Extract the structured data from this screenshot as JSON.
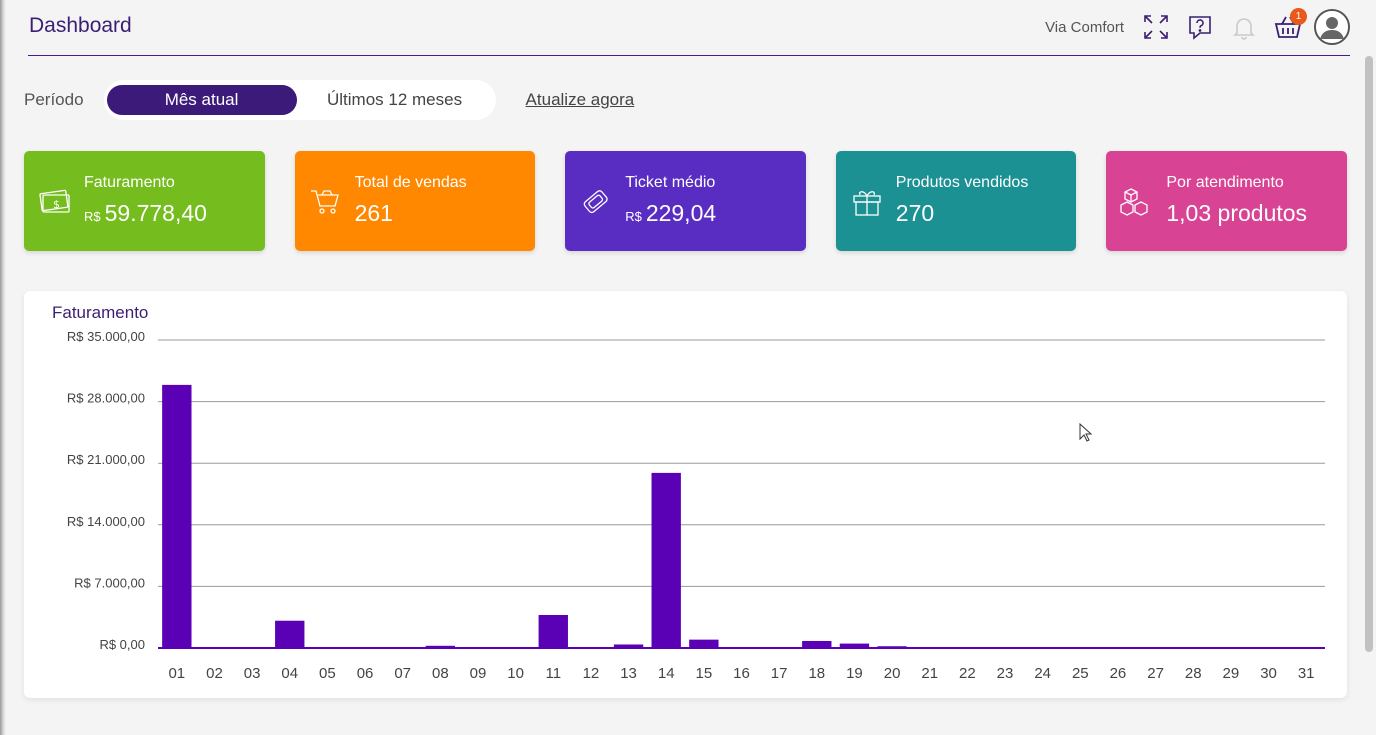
{
  "header": {
    "title": "Dashboard",
    "store_name": "Via Comfort",
    "cart_count": "1",
    "icons": [
      "fullscreen-icon",
      "help-icon",
      "bell-icon",
      "basket-icon",
      "user-avatar-icon"
    ]
  },
  "period": {
    "label": "Período",
    "options": [
      "Mês atual",
      "Últimos 12 meses"
    ],
    "selected": "Mês atual",
    "refresh_label": "Atualize agora"
  },
  "cards": [
    {
      "label": "Faturamento",
      "currency": "R$",
      "value": "59.778,40",
      "color": "#75bd1f",
      "icon": "money-icon"
    },
    {
      "label": "Total de vendas",
      "currency": "",
      "value": "261",
      "color": "#ff8800",
      "icon": "cart-icon"
    },
    {
      "label": "Ticket médio",
      "currency": "R$",
      "value": "229,04",
      "color": "#5a2dc2",
      "icon": "ticket-icon"
    },
    {
      "label": "Produtos vendidos",
      "currency": "",
      "value": "270",
      "color": "#1b9194",
      "icon": "gift-icon"
    },
    {
      "label": "Por atendimento",
      "currency": "",
      "value": "1,03 produtos",
      "color": "#d84394",
      "icon": "boxes-icon"
    }
  ],
  "chart": {
    "title": "Faturamento"
  },
  "chart_data": {
    "type": "bar",
    "title": "Faturamento",
    "xlabel": "",
    "ylabel": "",
    "ylim": [
      0,
      35000
    ],
    "yticks": [
      0,
      7000,
      14000,
      21000,
      28000,
      35000
    ],
    "ytick_labels": [
      "R$ 0,00",
      "R$ 7.000,00",
      "R$ 14.000,00",
      "R$ 21.000,00",
      "R$ 28.000,00",
      "R$ 35.000,00"
    ],
    "grid": true,
    "bar_color": "#5a00b5",
    "categories": [
      "01",
      "02",
      "03",
      "04",
      "05",
      "06",
      "07",
      "08",
      "09",
      "10",
      "11",
      "12",
      "13",
      "14",
      "15",
      "16",
      "17",
      "18",
      "19",
      "20",
      "21",
      "22",
      "23",
      "24",
      "25",
      "26",
      "27",
      "28",
      "29",
      "30",
      "31"
    ],
    "values": [
      29900,
      0,
      0,
      3100,
      0,
      0,
      0,
      250,
      0,
      0,
      3750,
      0,
      400,
      19900,
      950,
      0,
      0,
      800,
      500,
      200,
      0,
      0,
      0,
      0,
      0,
      0,
      0,
      0,
      0,
      0,
      0
    ]
  }
}
